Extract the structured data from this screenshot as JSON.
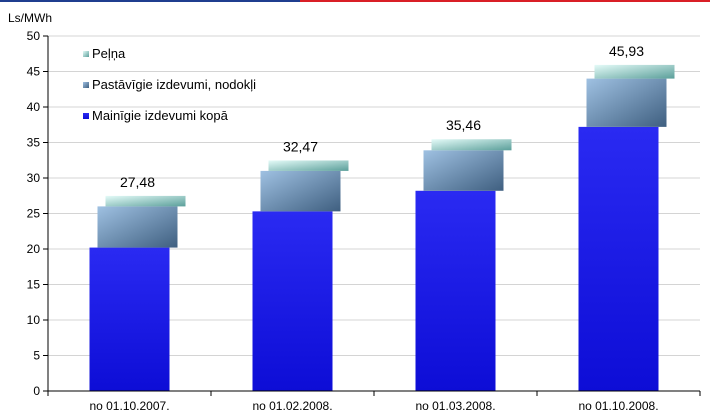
{
  "chart_data": {
    "type": "bar",
    "stacked": true,
    "unit": "Ls/MWh",
    "categories": [
      "no 01.10.2007.",
      "no 01.02.2008.",
      "no 01.03.2008.",
      "no 01.10.2008."
    ],
    "series": [
      {
        "name": "Mainīgie izdevumi kopā",
        "color": "#1a1ae6",
        "values": [
          20.2,
          25.3,
          28.2,
          37.2
        ]
      },
      {
        "name": "Pastāvīgie izdevumi, nodokļi",
        "color": "#6f93b5",
        "values": [
          5.8,
          5.7,
          5.7,
          6.8
        ]
      },
      {
        "name": "Peļņa",
        "color": "#a8d8d6",
        "values": [
          1.48,
          1.47,
          1.56,
          1.93
        ]
      }
    ],
    "totals": [
      "27,48",
      "32,47",
      "35,46",
      "45,93"
    ],
    "ylim": [
      0,
      50
    ],
    "yticks": [
      0,
      5,
      10,
      15,
      20,
      25,
      30,
      35,
      40,
      45,
      50
    ],
    "grid": true,
    "legend": "top-left"
  }
}
